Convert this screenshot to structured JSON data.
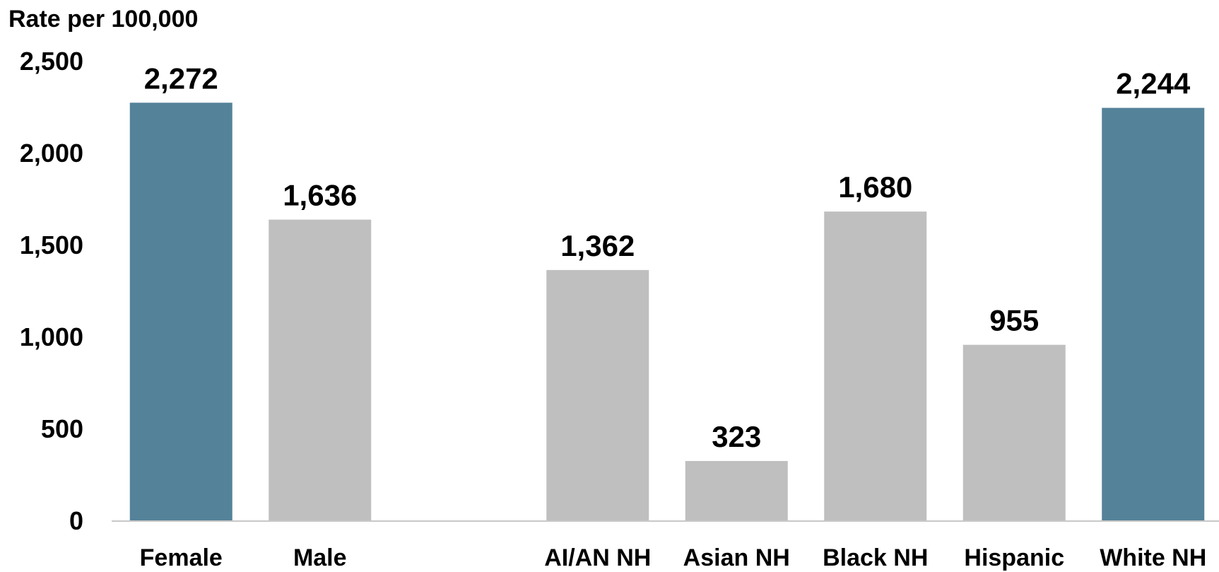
{
  "chart_data": {
    "type": "bar",
    "title": "",
    "ylabel": "Rate per 100,000",
    "xlabel": "",
    "ylim": [
      0,
      2500
    ],
    "yticks": [
      "0",
      "500",
      "1,000",
      "1,500",
      "2,000",
      "2,500"
    ],
    "categories": [
      "Female",
      "Male",
      "",
      "AI/AN NH",
      "Asian NH",
      "Black NH",
      "Hispanic",
      "White NH"
    ],
    "values": [
      2272,
      1636,
      null,
      1362,
      323,
      1680,
      955,
      2244
    ],
    "value_labels": [
      "2,272",
      "1,636",
      "",
      "1,362",
      "323",
      "1,680",
      "955",
      "2,244"
    ],
    "highlight": [
      true,
      false,
      false,
      false,
      false,
      false,
      false,
      true
    ],
    "colors": {
      "highlight": "#548299",
      "default": "#bfbfbf",
      "axis": "#c8c8c8"
    },
    "grid": false,
    "legend": "none"
  }
}
